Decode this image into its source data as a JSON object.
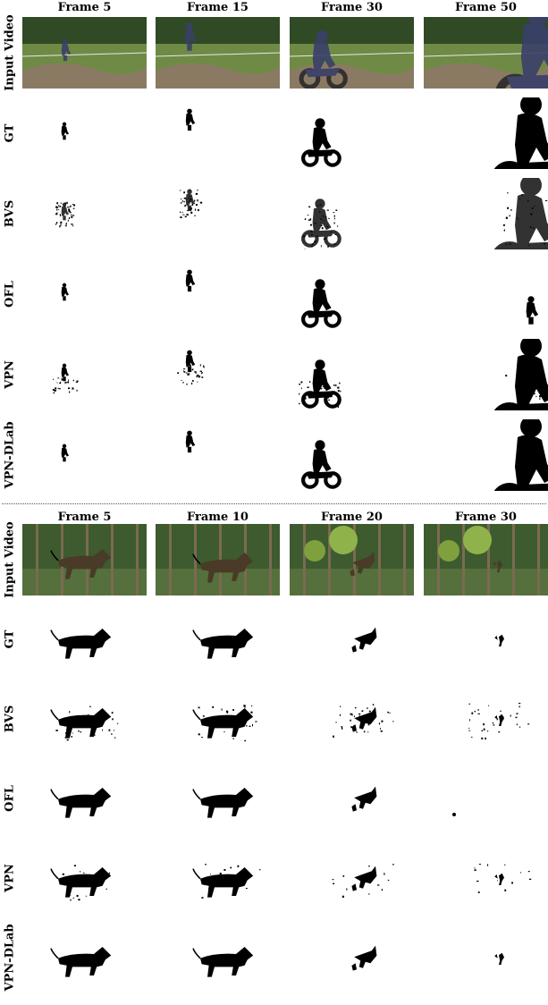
{
  "figure": {
    "panels": [
      {
        "id": "motocross",
        "columns": [
          "Frame 5",
          "Frame 15",
          "Frame 30",
          "Frame 50"
        ],
        "rows": [
          {
            "label": "Input Video",
            "kind": "video"
          },
          {
            "label": "GT",
            "kind": "mask",
            "quality": "clean"
          },
          {
            "label": "BVS",
            "kind": "mask",
            "quality": "speckled"
          },
          {
            "label": "OFL",
            "kind": "mask",
            "quality": "partial"
          },
          {
            "label": "VPN",
            "kind": "mask",
            "quality": "noisy"
          },
          {
            "label": "VPN-DLab",
            "kind": "mask",
            "quality": "clean"
          }
        ],
        "subject": "rider-on-motorbike"
      },
      {
        "id": "dog",
        "columns": [
          "Frame 5",
          "Frame 10",
          "Frame 20",
          "Frame 30"
        ],
        "rows": [
          {
            "label": "Input Video",
            "kind": "video"
          },
          {
            "label": "GT",
            "kind": "mask",
            "quality": "clean"
          },
          {
            "label": "BVS",
            "kind": "mask",
            "quality": "speckled"
          },
          {
            "label": "OFL",
            "kind": "mask",
            "quality": "partial"
          },
          {
            "label": "VPN",
            "kind": "mask",
            "quality": "noisy"
          },
          {
            "label": "VPN-DLab",
            "kind": "mask",
            "quality": "clean"
          }
        ],
        "subject": "running-dog"
      }
    ],
    "colors": {
      "mask": "#000000",
      "background": "#ffffff",
      "grass": "#6f8a45",
      "trees": "#2f4a25",
      "dirt": "#8b7a63",
      "fence": "#7b6a52"
    }
  }
}
